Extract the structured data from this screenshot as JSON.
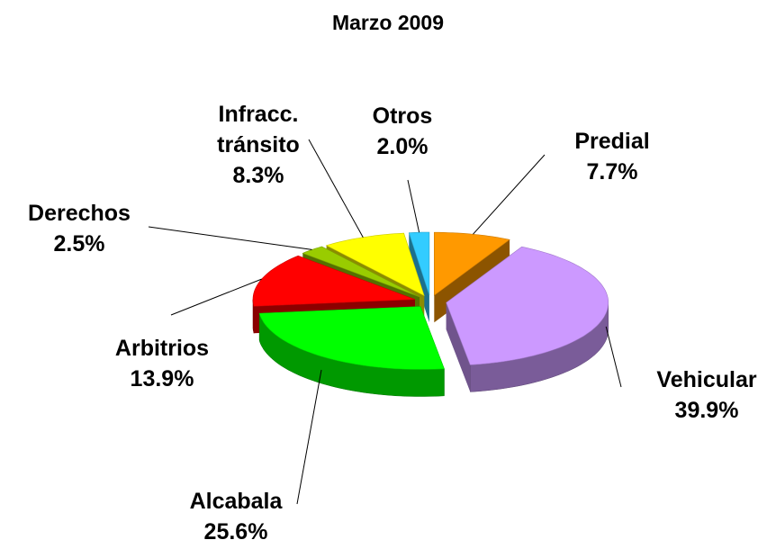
{
  "chart_data": {
    "type": "pie3d",
    "title": "Marzo 2009",
    "categories": [
      "Predial",
      "Vehicular",
      "Alcabala",
      "Arbitrios",
      "Derechos",
      "Infracc. tránsito",
      "Otros"
    ],
    "values": [
      7.7,
      39.9,
      25.6,
      13.9,
      2.5,
      8.3,
      2.0
    ],
    "value_labels": [
      "7.7%",
      "39.9%",
      "25.6%",
      "13.9%",
      "2.5%",
      "8.3%",
      "2.0%"
    ],
    "colors": [
      "#ff9900",
      "#cc99ff",
      "#00ff00",
      "#ff0000",
      "#99cc00",
      "#ffff00",
      "#33ccff"
    ]
  }
}
